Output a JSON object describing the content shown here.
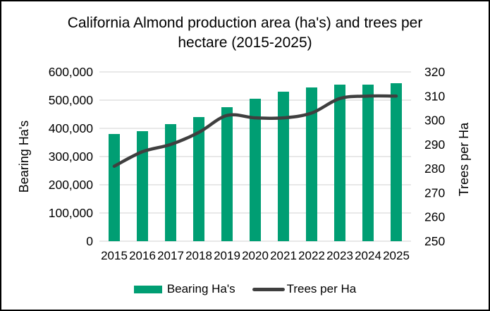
{
  "chart_data": {
    "type": "combo",
    "title": "California Almond production area (ha's) and trees per hectare (2015-2025)",
    "categories": [
      "2015",
      "2016",
      "2017",
      "2018",
      "2019",
      "2020",
      "2021",
      "2022",
      "2023",
      "2024",
      "2025"
    ],
    "series": [
      {
        "name": "Bearing Ha's",
        "type": "bar",
        "axis": "left",
        "color": "#009E73",
        "values": [
          380000,
          390000,
          415000,
          440000,
          475000,
          505000,
          530000,
          545000,
          555000,
          555000,
          560000
        ]
      },
      {
        "name": "Trees per Ha",
        "type": "line",
        "axis": "right",
        "color": "#3F3F3F",
        "values": [
          281,
          287,
          290,
          295,
          302,
          301,
          301,
          303,
          309,
          310,
          310
        ]
      }
    ],
    "left_axis": {
      "label": "Bearing Ha's",
      "min": 0,
      "max": 600000,
      "step": 100000,
      "tick_labels": [
        "0",
        "100,000",
        "200,000",
        "300,000",
        "400,000",
        "500,000",
        "600,000"
      ]
    },
    "right_axis": {
      "label": "Trees per Ha",
      "min": 250,
      "max": 320,
      "step": 10,
      "tick_labels": [
        "250",
        "260",
        "270",
        "280",
        "290",
        "300",
        "310",
        "320"
      ]
    },
    "legend": {
      "position": "bottom",
      "entries": [
        "Bearing Ha's",
        "Trees per Ha"
      ]
    },
    "grid": true,
    "background": "#FFFFFF",
    "gridline_color": "#D9D9D9",
    "text_color": "#000000"
  }
}
